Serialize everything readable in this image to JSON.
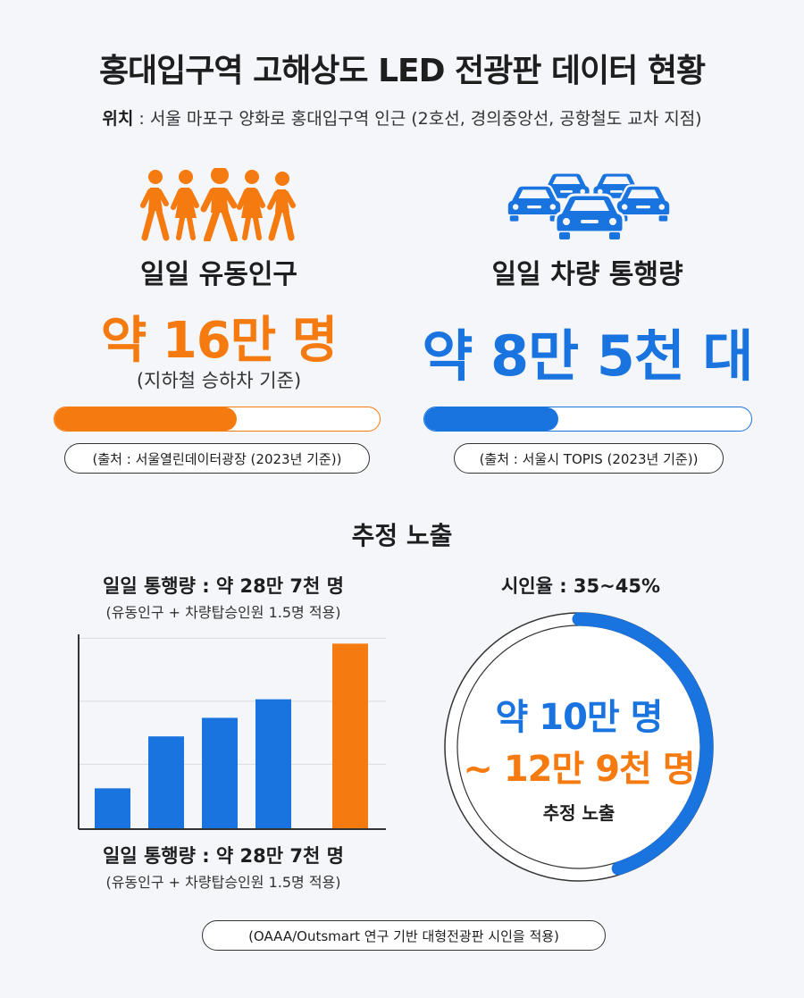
{
  "title": "홍대입구역 고해상도 LED 전광판 데이터 현황",
  "location": {
    "label": "위치",
    "text": " : 서울 마포구 양화로 홍대입구역 인근 (2호선, 경의중앙선, 공항철도 교차 지점)"
  },
  "pedestrians": {
    "icon": "walking-people-icon",
    "label": "일일 유동인구",
    "value_text": "약 16만 명",
    "note": "(지하철 승하차 기준)",
    "progress": 0.56,
    "source": "(출처 : 서울열린데이터광장 (2023년 기준))",
    "color": "#f57a0f"
  },
  "vehicles": {
    "icon": "cars-icon",
    "label": "일일 차량 통행량",
    "value_text": "약 8만 5천 대",
    "progress": 0.41,
    "source": "(출처 : 서울시 TOPIS (2023년 기준))",
    "color": "#1a74e0"
  },
  "exposure": {
    "section_title": "추정 노출",
    "top_title": "일일 통행량 : 약 28만 7천 명",
    "top_sub": "(유동인구 + 차량탑승인원 1.5명 적용)",
    "bottom_title": "일일 통행량 : 약 28만 7천 명",
    "bottom_sub": "(유동인구 + 차량탑승인원 1.5명 적용)",
    "visibility_title": "시인율 : 35~45%",
    "ring_line1": "약 10만 명",
    "ring_line2": "~ 12만 9천 명",
    "ring_line3": "추정 노출",
    "ring_fraction": 0.45,
    "footnote": "(OAAA/Outsmart 연구 기반 대형전광판 시인을 적용)"
  },
  "chart_data": {
    "type": "bar",
    "categories": [
      "",
      "",
      "",
      "",
      ""
    ],
    "values": [
      0.22,
      0.5,
      0.6,
      0.7,
      1.0
    ],
    "colors": [
      "#1a74e0",
      "#1a74e0",
      "#1a74e0",
      "#1a74e0",
      "#f57a0f"
    ],
    "ylim": [
      0,
      1.05
    ],
    "grid": true
  }
}
